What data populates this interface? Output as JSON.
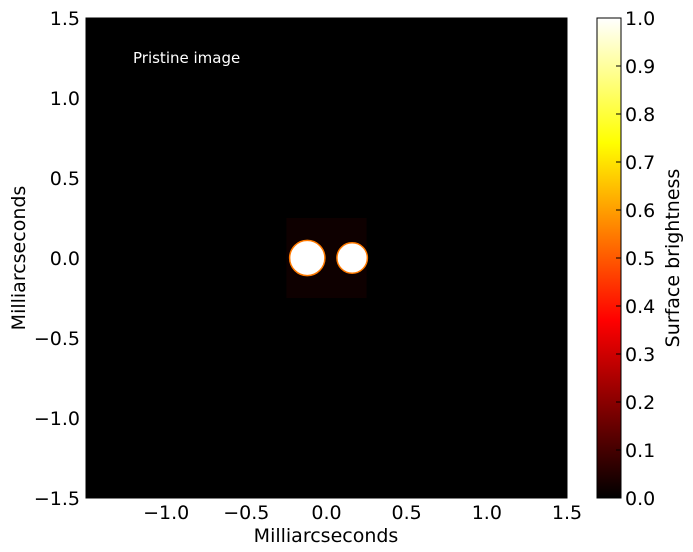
{
  "chart_data": {
    "type": "heatmap",
    "title": "",
    "xlabel": "Milliarcseconds",
    "ylabel": "Milliarcseconds",
    "xlim": [
      -1.5,
      1.5
    ],
    "ylim": [
      -1.5,
      1.5
    ],
    "xticks": [
      -1.0,
      -0.5,
      0.0,
      0.5,
      1.0,
      1.5
    ],
    "xtick_labels": [
      "−1.0",
      "−0.5",
      "0.0",
      "0.5",
      "1.0",
      "1.5"
    ],
    "yticks": [
      1.5,
      1.0,
      0.5,
      0.0,
      -0.5,
      -1.0,
      -1.5
    ],
    "ytick_labels": [
      "1.5",
      "1.0",
      "0.5",
      "0.0",
      "−0.5",
      "−1.0",
      "−1.5"
    ],
    "annotation": "Pristine image",
    "grid": false,
    "background_value": 0.0,
    "faint_box": {
      "x_range": [
        -0.25,
        0.25
      ],
      "y_range": [
        -0.25,
        0.25
      ],
      "value": 0.02
    },
    "sources": [
      {
        "name": "source-1",
        "x": -0.12,
        "y": 0.0,
        "radius": 0.11,
        "value": 1.0
      },
      {
        "name": "source-2",
        "x": 0.16,
        "y": 0.0,
        "radius": 0.095,
        "value": 1.0
      }
    ],
    "colorbar": {
      "label": "Surface brightness",
      "colormap": "hot",
      "range": [
        0.0,
        1.0
      ],
      "ticks": [
        0.0,
        0.1,
        0.2,
        0.3,
        0.4,
        0.5,
        0.6,
        0.7,
        0.8,
        0.9,
        1.0
      ],
      "tick_labels": [
        "0.0",
        "0.1",
        "0.2",
        "0.3",
        "0.4",
        "0.5",
        "0.6",
        "0.7",
        "0.8",
        "0.9",
        "1.0"
      ],
      "colors": {
        "0.0": "#000000",
        "0.37": "#ff0000",
        "0.74": "#ffff00",
        "1.0": "#ffffff"
      }
    }
  }
}
